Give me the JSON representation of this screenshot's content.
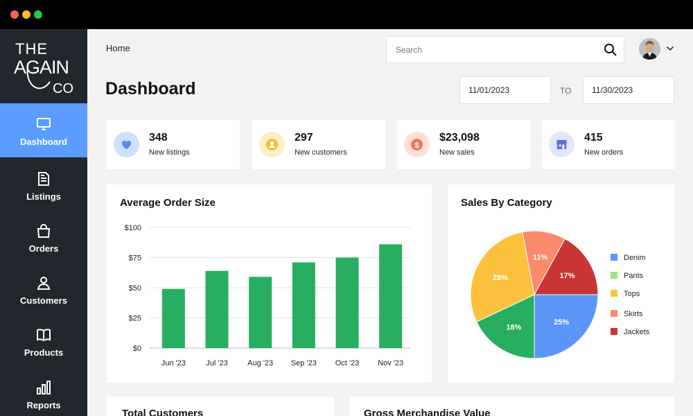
{
  "window": {
    "controls": [
      "close",
      "minimize",
      "maximize"
    ]
  },
  "brand": {
    "line1": "THE",
    "line2": "AGAIN",
    "line3": "CO"
  },
  "sidebar": {
    "items": [
      {
        "label": "Dashboard",
        "icon": "monitor-icon",
        "active": true
      },
      {
        "label": "Listings",
        "icon": "document-icon"
      },
      {
        "label": "Orders",
        "icon": "shopping-bag-icon"
      },
      {
        "label": "Customers",
        "icon": "user-icon"
      },
      {
        "label": "Products",
        "icon": "book-icon"
      },
      {
        "label": "Reports",
        "icon": "bar-chart-icon"
      }
    ]
  },
  "header": {
    "breadcrumb": "Home",
    "search": {
      "placeholder": "Search",
      "value": ""
    }
  },
  "page": {
    "title": "Dashboard",
    "date_from": "11/01/2023",
    "date_to_label": "TO",
    "date_to": "11/30/2023"
  },
  "stats": [
    {
      "value": "348",
      "label": "New listings",
      "icon": "heart-icon",
      "color": "#4d8ef5",
      "bg": "#cfe0fc"
    },
    {
      "value": "297",
      "label": "New customers",
      "icon": "user-circle-icon",
      "color": "#f0bd34",
      "bg": "#fdf0c4"
    },
    {
      "value": "$23,098",
      "label": "New sales",
      "icon": "dollar-icon",
      "color": "#ef7760",
      "bg": "#fde0da"
    },
    {
      "value": "415",
      "label": "New orders",
      "icon": "store-icon",
      "color": "#5b6fe0",
      "bg": "#e3e7fb"
    }
  ],
  "cards": {
    "avg_order_title": "Average Order Size",
    "sales_category_title": "Sales By Category",
    "total_customers_title": "Total Customers",
    "gmv_title": "Gross Merchandise Value"
  },
  "chart_data": [
    {
      "type": "bar",
      "title": "Average Order Size",
      "categories": [
        "Jun '23",
        "Jul '23",
        "Aug '23",
        "Sep '23",
        "Oct '23",
        "Nov '23"
      ],
      "values": [
        49,
        64,
        59,
        71,
        75,
        86
      ],
      "ylim": [
        0,
        100
      ],
      "yticks": [
        "$0",
        "$25",
        "$50",
        "$75",
        "$100"
      ],
      "color": "#27ae60",
      "grid": true
    },
    {
      "type": "pie",
      "title": "Sales By Category",
      "slices": [
        {
          "name": "Denim",
          "value": 25,
          "label": "25%",
          "color": "#5b96f7"
        },
        {
          "name": "Pants",
          "value": 18,
          "label": "18%",
          "color": "#27ae60"
        },
        {
          "name": "Tops",
          "value": 29,
          "label": "29%",
          "color": "#fbc13d"
        },
        {
          "name": "Skirts",
          "value": 11,
          "label": "11%",
          "color": "#f98b6c"
        },
        {
          "name": "Jackets",
          "value": 17,
          "label": "17%",
          "color": "#c93434"
        }
      ],
      "legend": [
        {
          "name": "Denim",
          "color": "#5b96f7"
        },
        {
          "name": "Pants",
          "color": "#a6de86"
        },
        {
          "name": "Tops",
          "color": "#fbc13d"
        },
        {
          "name": "Skirts",
          "color": "#f98b6c"
        },
        {
          "name": "Jackets",
          "color": "#c93434"
        }
      ],
      "legend_position": "right"
    }
  ]
}
